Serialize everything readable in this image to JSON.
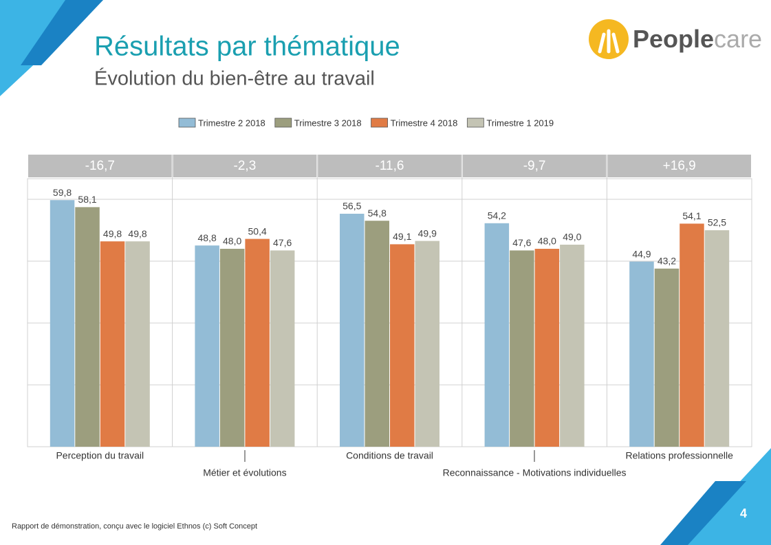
{
  "header": {
    "title": "Résultats par thématique",
    "subtitle": "Évolution du bien-être au travail"
  },
  "logo": {
    "part1": "People",
    "part2": "care"
  },
  "chart_data": {
    "type": "bar",
    "categories": [
      "Perception du travail",
      "Métier et évolutions",
      "Conditions de travail",
      "Reconnaissance - Motivations individuelles",
      "Relations professionnelle"
    ],
    "group_labels": [
      "-16,7",
      "-2,3",
      "-11,6",
      "-9,7",
      "+16,9"
    ],
    "series": [
      {
        "name": "Trimestre 2 2018",
        "color": "#93bcd6",
        "values": [
          59.8,
          48.8,
          56.5,
          54.2,
          44.9
        ],
        "value_labels": [
          "59,8",
          "48,8",
          "56,5",
          "54,2",
          "44,9"
        ]
      },
      {
        "name": "Trimestre 3 2018",
        "color": "#9c9e7e",
        "values": [
          58.1,
          48.0,
          54.8,
          47.6,
          43.2
        ],
        "value_labels": [
          "58,1",
          "48,0",
          "54,8",
          "47,6",
          "43,2"
        ]
      },
      {
        "name": "Trimestre 4 2018",
        "color": "#e07b45",
        "values": [
          49.8,
          50.4,
          49.1,
          48.0,
          54.1
        ],
        "value_labels": [
          "49,8",
          "50,4",
          "49,1",
          "48,0",
          "54,1"
        ]
      },
      {
        "name": "Trimestre 1 2019",
        "color": "#c4c4b4",
        "values": [
          49.8,
          47.6,
          49.9,
          49.0,
          52.5
        ],
        "value_labels": [
          "49,8",
          "47,6",
          "49,9",
          "49,0",
          "52,5"
        ]
      }
    ],
    "ylim": [
      0,
      65
    ],
    "yticks": [
      15,
      30,
      45,
      60
    ],
    "grid": true
  },
  "footer": {
    "note": "Rapport de démonstration, conçu avec le logiciel Ethnos (c) Soft Concept",
    "page": "4"
  }
}
